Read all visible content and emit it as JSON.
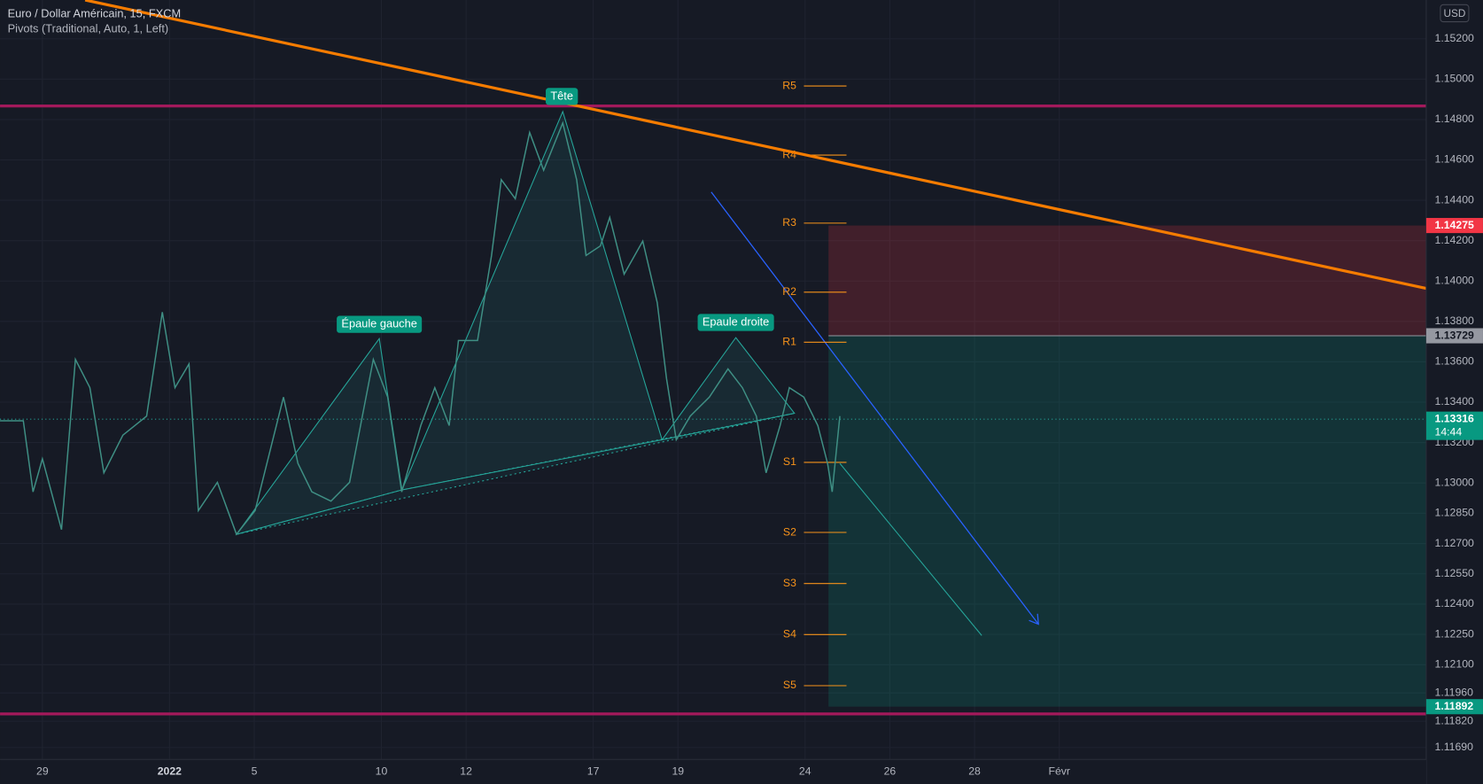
{
  "chart_data": {
    "type": "line",
    "title": "Euro / Dollar Américain, 15, FXCM",
    "subtitle": "Pivots (Traditional, Auto, 1, Left)",
    "currency": "USD",
    "color": "#3f8f84",
    "x": [
      -1.0,
      -0.45,
      -0.22,
      0,
      0.45,
      0.78,
      1.12,
      1.45,
      1.9,
      2.46,
      2.83,
      3.13,
      3.46,
      3.68,
      4.13,
      4.58,
      5.02,
      5.69,
      6.03,
      6.36,
      6.81,
      7.25,
      7.81,
      8.15,
      8.48,
      8.93,
      9.26,
      9.6,
      9.82,
      10.27,
      10.6,
      10.83,
      11.16,
      11.5,
      11.83,
      12.28,
      12.61,
      12.83,
      13.17,
      13.39,
      13.73,
      14.17,
      14.51,
      14.73,
      14.96,
      15.29,
      15.74,
      16.18,
      16.52,
      16.85,
      17.08,
      17.41,
      17.63,
      17.97,
      18.3,
      18.53,
      18.64,
      18.82
    ],
    "values": [
      1.13308,
      1.13308,
      1.12956,
      1.1312,
      1.12769,
      1.13612,
      1.13472,
      1.1305,
      1.13237,
      1.13331,
      1.13846,
      1.13472,
      1.13589,
      1.12863,
      1.13003,
      1.12746,
      1.12863,
      1.13425,
      1.13097,
      1.12956,
      1.1291,
      1.13003,
      1.13612,
      1.13425,
      1.12956,
      1.13284,
      1.13472,
      1.13284,
      1.13706,
      1.13706,
      1.14127,
      1.14502,
      1.14408,
      1.14736,
      1.14549,
      1.14783,
      1.14502,
      1.14127,
      1.14174,
      1.14315,
      1.14034,
      1.14198,
      1.13893,
      1.13518,
      1.13214,
      1.13331,
      1.13425,
      1.13565,
      1.13472,
      1.13331,
      1.1305,
      1.13284,
      1.13472,
      1.13425,
      1.13284,
      1.13097,
      1.12956,
      1.13331
    ],
    "xlim": [
      -1.0,
      32.66
    ],
    "xticks": [
      {
        "value": 0,
        "label": "29"
      },
      {
        "value": 3,
        "label": "2022"
      },
      {
        "value": 5,
        "label": "5"
      },
      {
        "value": 8,
        "label": "10"
      },
      {
        "value": 10,
        "label": "12"
      },
      {
        "value": 13,
        "label": "17"
      },
      {
        "value": 15,
        "label": "19"
      },
      {
        "value": 18,
        "label": "24"
      },
      {
        "value": 20,
        "label": "26"
      },
      {
        "value": 22,
        "label": "28"
      },
      {
        "value": 24,
        "label": "Févr"
      }
    ],
    "ylim": [
      1.11509,
      1.15392
    ],
    "yticks": [
      {
        "value": 1.152,
        "label": "1.15200"
      },
      {
        "value": 1.15,
        "label": "1.15000"
      },
      {
        "value": 1.148,
        "label": "1.14800"
      },
      {
        "value": 1.146,
        "label": "1.14600"
      },
      {
        "value": 1.144,
        "label": "1.14400"
      },
      {
        "value": 1.142,
        "label": "1.14200"
      },
      {
        "value": 1.14,
        "label": "1.14000"
      },
      {
        "value": 1.138,
        "label": "1.13800"
      },
      {
        "value": 1.136,
        "label": "1.13600"
      },
      {
        "value": 1.134,
        "label": "1.13400"
      },
      {
        "value": 1.132,
        "label": "1.13200"
      },
      {
        "value": 1.13,
        "label": "1.13000"
      },
      {
        "value": 1.1285,
        "label": "1.12850"
      },
      {
        "value": 1.127,
        "label": "1.12700"
      },
      {
        "value": 1.1255,
        "label": "1.12550"
      },
      {
        "value": 1.124,
        "label": "1.12400"
      },
      {
        "value": 1.1225,
        "label": "1.12250"
      },
      {
        "value": 1.121,
        "label": "1.12100"
      },
      {
        "value": 1.1196,
        "label": "1.11960"
      },
      {
        "value": 1.1182,
        "label": "1.11820"
      },
      {
        "value": 1.1169,
        "label": "1.11690"
      }
    ],
    "grid": true,
    "pivots": [
      {
        "label": "R5",
        "value": 1.14966
      },
      {
        "label": "R4",
        "value": 1.14624
      },
      {
        "label": "R3",
        "value": 1.14287
      },
      {
        "label": "R2",
        "value": 1.13945
      },
      {
        "label": "R1",
        "value": 1.13697
      },
      {
        "label": "S1",
        "value": 1.13102
      },
      {
        "label": "S2",
        "value": 1.12755
      },
      {
        "label": "S3",
        "value": 1.12502
      },
      {
        "label": "S4",
        "value": 1.12249
      },
      {
        "label": "S5",
        "value": 1.11996
      }
    ],
    "pivot_color": "#f7931a",
    "levels": [
      1.14867,
      1.11856
    ],
    "level_color": "#a3195b",
    "position": {
      "stop": 1.14275,
      "entry": 1.13729,
      "target": 1.11892
    },
    "last_price": {
      "value": 1.13316,
      "countdown": "14:44"
    },
    "annotations": [
      "Épaule gauche",
      "Tête",
      "Epaule droite"
    ]
  }
}
